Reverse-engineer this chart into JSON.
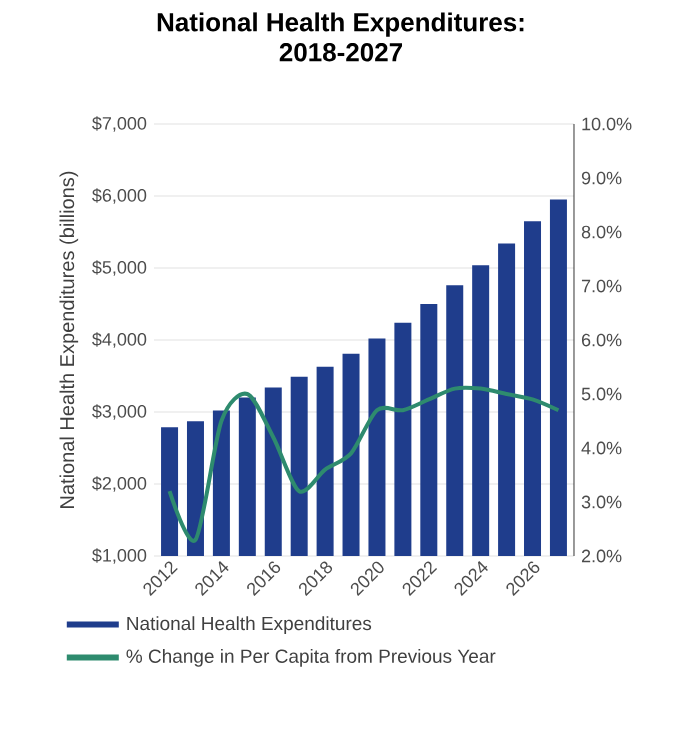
{
  "chart_data": {
    "type": "bar",
    "title": "National Health Expenditures:\n2018-2027",
    "ylabel": "National Health Expenditures (billions)",
    "categories": [
      "2012",
      null,
      "2014",
      null,
      "2016",
      null,
      "2018",
      null,
      "2020",
      null,
      "2022",
      null,
      "2024",
      null,
      "2026",
      null
    ],
    "series": [
      {
        "name": "National Health Expenditures",
        "color": "#1f3d8c",
        "values": [
          2790,
          2870,
          3020,
          3200,
          3340,
          3490,
          3630,
          3810,
          4020,
          4240,
          4500,
          4760,
          5040,
          5340,
          5650,
          5950
        ]
      },
      {
        "name": "% Change in Per Capita from Previous Year",
        "type": "line",
        "axis": "y2",
        "color": "#2e8b6e",
        "values": [
          3.2,
          2.3,
          4.5,
          5.0,
          4.2,
          3.2,
          3.6,
          3.9,
          4.7,
          4.7,
          4.9,
          5.1,
          5.1,
          5.0,
          4.9,
          4.7
        ]
      }
    ],
    "ylim": [
      1000,
      7000
    ],
    "yticks": [
      {
        "value": 1000,
        "label": "$1,000"
      },
      {
        "value": 2000,
        "label": "$2,000"
      },
      {
        "value": 3000,
        "label": "$3,000"
      },
      {
        "value": 4000,
        "label": "$4,000"
      },
      {
        "value": 5000,
        "label": "$5,000"
      },
      {
        "value": 6000,
        "label": "$6,000"
      },
      {
        "value": 7000,
        "label": "$7,000"
      }
    ],
    "y2lim": [
      2,
      10
    ],
    "y2ticks": [
      {
        "value": 2,
        "label": "2.0%"
      },
      {
        "value": 3,
        "label": "3.0%"
      },
      {
        "value": 4,
        "label": "4.0%"
      },
      {
        "value": 5,
        "label": "5.0%"
      },
      {
        "value": 6,
        "label": "6.0%"
      },
      {
        "value": 7,
        "label": "7.0%"
      },
      {
        "value": 8,
        "label": "8.0%"
      },
      {
        "value": 9,
        "label": "9.0%"
      },
      {
        "value": 10,
        "label": "10.0%"
      }
    ],
    "grid": "y",
    "legend": "bottom"
  }
}
